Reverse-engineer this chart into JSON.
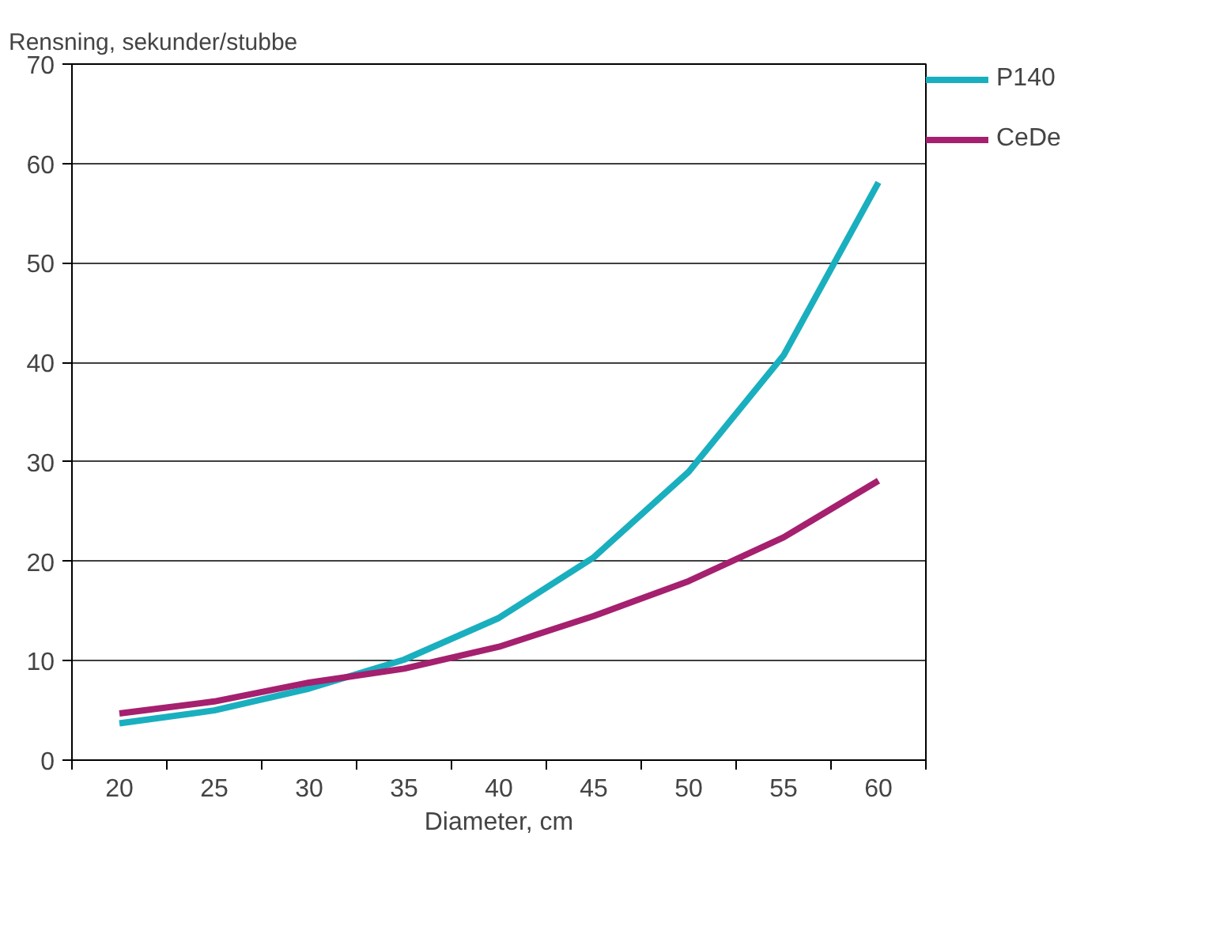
{
  "chart_data": {
    "type": "line",
    "xlabel": "Diameter, cm",
    "ylabel": "Rensning, sekunder/stubbe",
    "categories": [
      "20",
      "25",
      "30",
      "35",
      "40",
      "45",
      "50",
      "55",
      "60"
    ],
    "series": [
      {
        "name": "P140",
        "color": "#1aafbf",
        "values": [
          3.7,
          5.0,
          7.2,
          10.1,
          14.3,
          20.4,
          29.0,
          40.7,
          58.1
        ]
      },
      {
        "name": "CeDe",
        "color": "#a5206f",
        "values": [
          4.7,
          5.9,
          7.8,
          9.2,
          11.4,
          14.5,
          18.0,
          22.4,
          28.1
        ]
      }
    ],
    "ylim": [
      0,
      70
    ],
    "yticks": [
      0,
      10,
      20,
      30,
      40,
      50,
      60,
      70
    ],
    "grid": "y",
    "legend": "top right",
    "line_style": "solid",
    "marker": "none"
  }
}
